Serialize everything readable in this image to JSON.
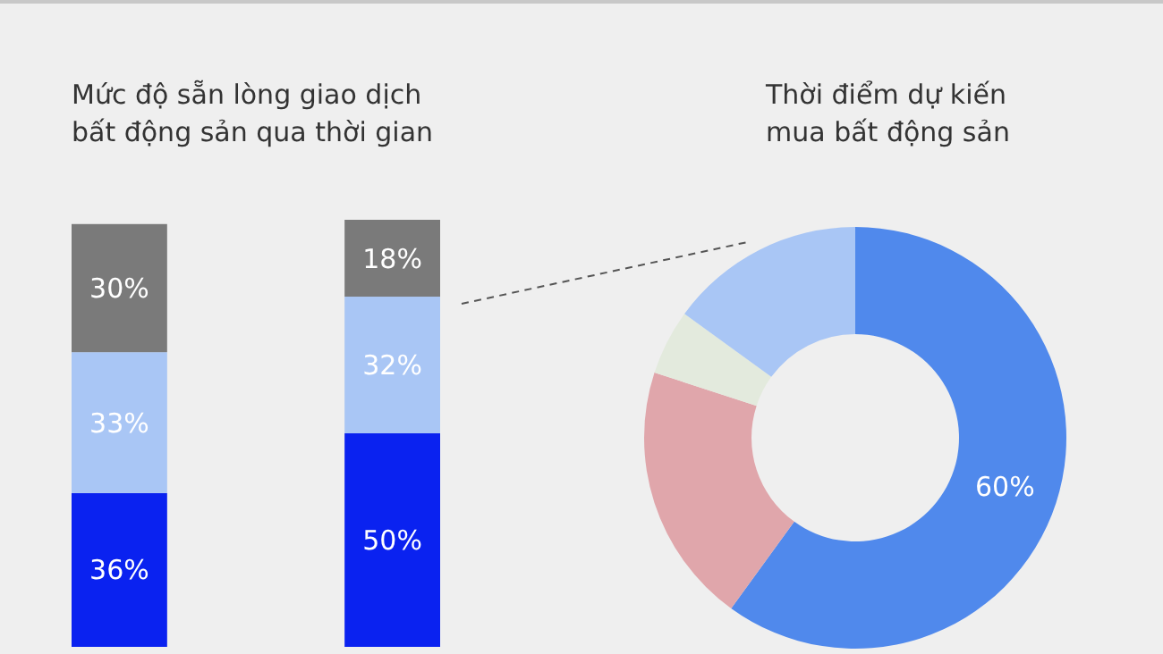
{
  "chart_data": [
    {
      "type": "bar",
      "stacked": true,
      "title": "Mức độ sẵn lòng giao dịch\nbất động sản qua thời gian",
      "categories": [
        null,
        null
      ],
      "series": [
        {
          "color": "#0a22f0",
          "values": [
            36,
            50
          ],
          "value_labels": [
            "36%",
            "50%"
          ]
        },
        {
          "color": "#a9c6f5",
          "values": [
            33,
            32
          ],
          "value_labels": [
            "33%",
            "32%"
          ]
        },
        {
          "color": "#7a7a7a",
          "values": [
            30,
            18
          ],
          "value_labels": [
            "30%",
            "18%"
          ]
        }
      ]
    },
    {
      "type": "donut",
      "title": "Thời điểm dự kiến\nmua bất động sản",
      "categories": [
        null,
        null,
        null,
        null
      ],
      "values": [
        60,
        20,
        5,
        15
      ],
      "colors": [
        "#5089ec",
        "#e0a6ab",
        "#e3eadd",
        "#a9c6f5"
      ],
      "value_labels": [
        "60%",
        null,
        null,
        null
      ]
    }
  ]
}
